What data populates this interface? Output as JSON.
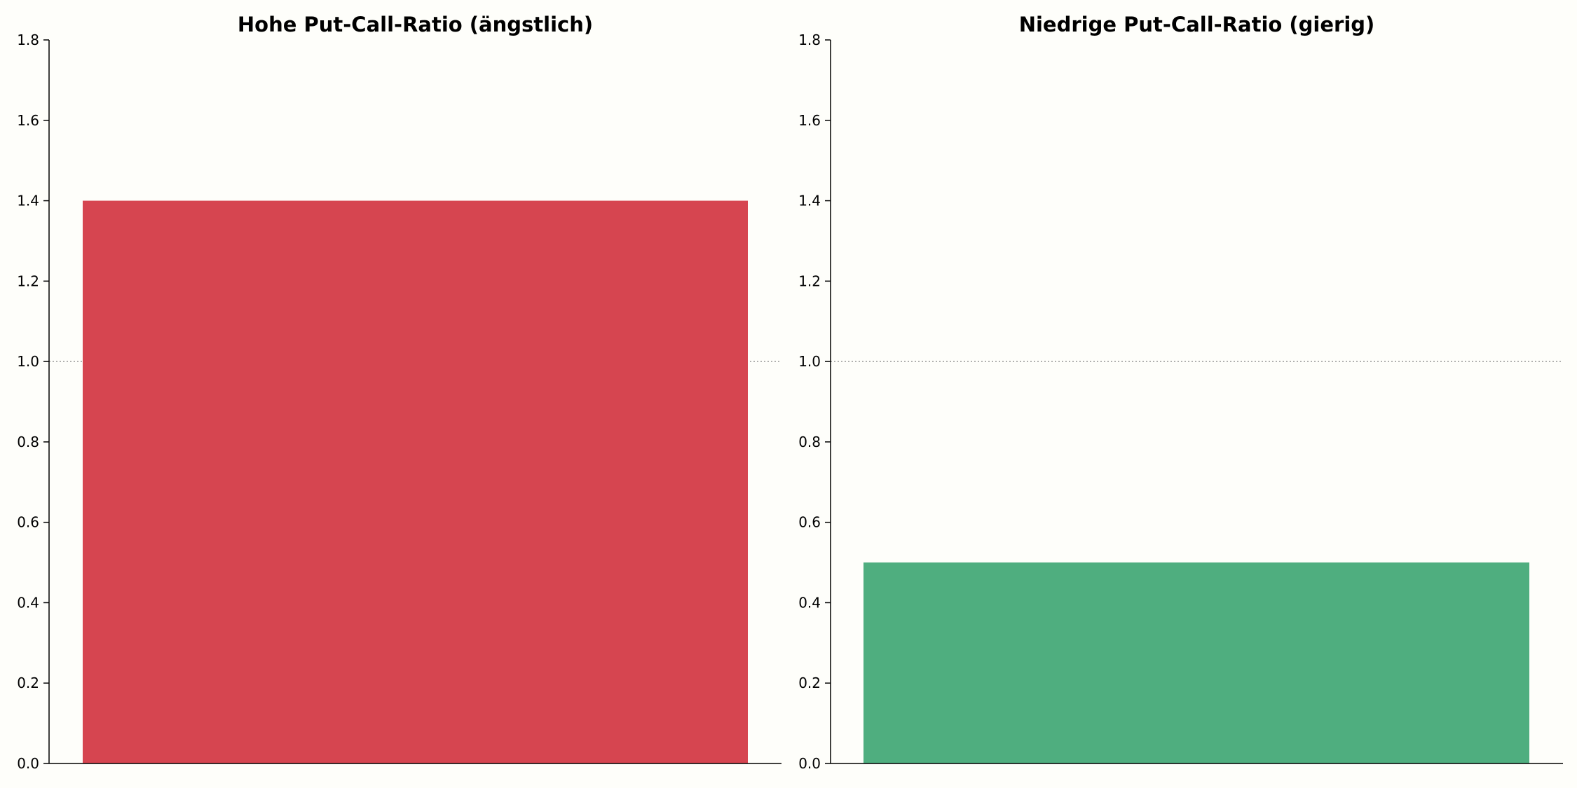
{
  "chart_data": [
    {
      "type": "bar",
      "title": "Hohe Put-Call-Ratio (ängstlich)",
      "categories": [
        ""
      ],
      "values": [
        1.4
      ],
      "ylim": [
        0,
        1.8
      ],
      "yticks": [
        0.0,
        0.2,
        0.4,
        0.6,
        0.8,
        1.0,
        1.2,
        1.4,
        1.6,
        1.8
      ],
      "reference_line": 1.0,
      "bar_color": "#d64550",
      "grid": false
    },
    {
      "type": "bar",
      "title": "Niedrige Put-Call-Ratio (gierig)",
      "categories": [
        ""
      ],
      "values": [
        0.5
      ],
      "ylim": [
        0,
        1.8
      ],
      "yticks": [
        0.0,
        0.2,
        0.4,
        0.6,
        0.8,
        1.0,
        1.2,
        1.4,
        1.6,
        1.8
      ],
      "reference_line": 1.0,
      "bar_color": "#4fae7f",
      "grid": false
    }
  ],
  "colors": {
    "background": "#fefefa",
    "axis": "#000000",
    "reference_line": "#999999"
  }
}
